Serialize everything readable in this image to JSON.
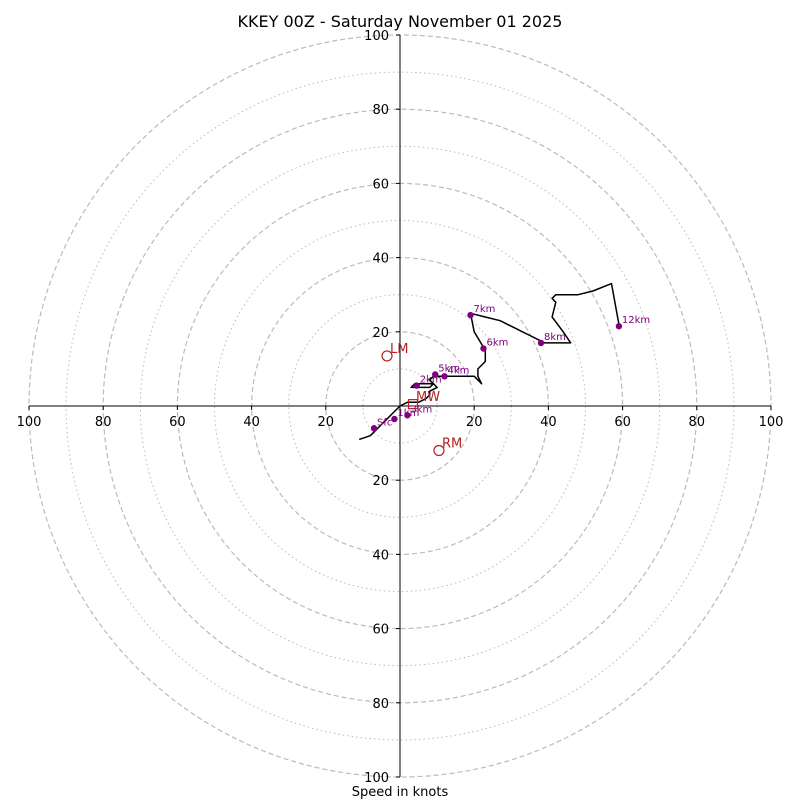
{
  "chart_data": {
    "type": "scatter",
    "subtype": "hodograph",
    "title": "KKEY 00Z - Saturday November 01 2025",
    "xlabel": "Speed in knots",
    "ylabel": "",
    "xlim": [
      -100,
      100
    ],
    "ylim": [
      -100,
      100
    ],
    "rings_dashed": [
      20,
      40,
      60,
      80,
      100
    ],
    "rings_dotted": [
      10,
      30,
      50,
      70,
      90
    ],
    "ticks": [
      "100",
      "80",
      "60",
      "40",
      "20",
      "20",
      "40",
      "60",
      "80",
      "100"
    ],
    "tick_values": [
      -100,
      -80,
      -60,
      -40,
      -20,
      20,
      40,
      60,
      80,
      100
    ],
    "colors": {
      "trace": "#000000",
      "height_marker": "#800080",
      "motion_marker": "#b22222",
      "grid": "#bbbbbb"
    },
    "trace": {
      "x": [
        -11,
        -8,
        -6,
        -4,
        -2,
        0,
        2,
        5,
        7,
        8,
        8,
        10,
        9,
        6,
        4,
        3,
        4,
        5,
        8,
        9,
        8,
        9,
        10,
        12,
        14,
        17,
        20,
        22,
        22,
        21,
        21,
        23,
        23,
        20,
        19,
        23,
        27,
        29,
        31,
        33,
        35,
        37,
        39,
        41,
        43,
        46,
        46,
        44,
        41,
        42,
        41,
        42,
        45,
        48,
        52,
        57,
        57,
        59
      ],
      "y": [
        -9,
        -8,
        -6,
        -4,
        -2,
        0,
        1,
        1,
        2,
        3,
        4,
        5,
        6,
        6,
        6,
        5,
        5,
        5,
        5,
        6,
        7,
        8,
        8,
        8,
        8,
        8,
        8,
        6,
        6,
        8,
        10,
        12,
        15,
        20,
        25,
        24,
        23,
        22,
        21,
        20,
        19,
        18,
        17,
        17,
        17,
        17,
        17,
        20,
        24,
        28,
        29,
        30,
        30,
        30,
        31,
        33,
        33,
        22
      ]
    },
    "height_markers": [
      {
        "label": "Sfc",
        "x": -7,
        "y": -6
      },
      {
        "label": "1km",
        "x": -1.5,
        "y": -3.5
      },
      {
        "label": "2km",
        "x": 4.5,
        "y": 5.5
      },
      {
        "label": "3km",
        "x": 2,
        "y": -2.5
      },
      {
        "label": "4km",
        "x": 12,
        "y": 8
      },
      {
        "label": "5km",
        "x": 9.5,
        "y": 8.5
      },
      {
        "label": "6km",
        "x": 22.5,
        "y": 15.5
      },
      {
        "label": "7km",
        "x": 19,
        "y": 24.5
      },
      {
        "label": "8km",
        "x": 38,
        "y": 17
      },
      {
        "label": "12km",
        "x": 59,
        "y": 21.5
      }
    ],
    "storm_motion": [
      {
        "label": "LM",
        "x": -3.5,
        "y": 13.5,
        "shape": "circle"
      },
      {
        "label": "RM",
        "x": 10.5,
        "y": -12,
        "shape": "circle"
      },
      {
        "label": "MW",
        "x": 3.5,
        "y": 0.5,
        "shape": "square"
      }
    ]
  }
}
